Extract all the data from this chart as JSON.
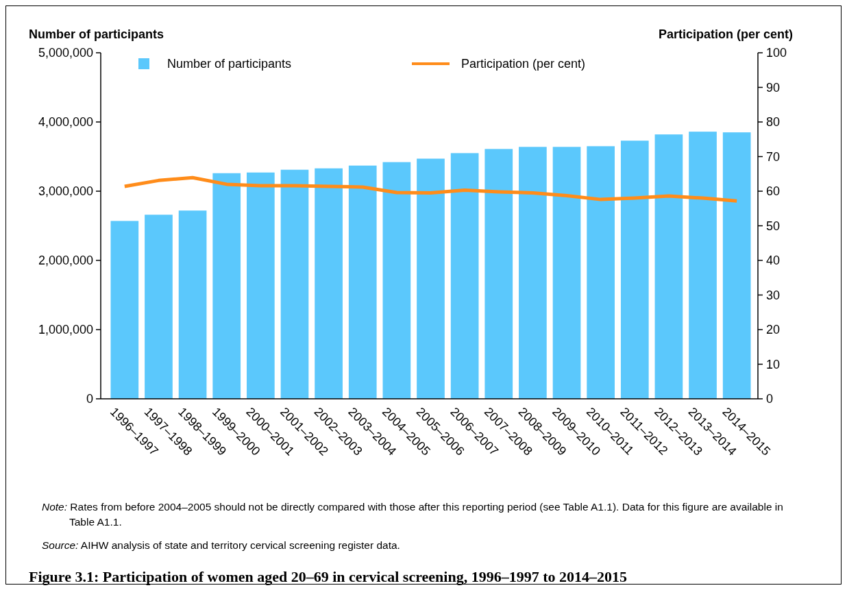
{
  "chart_data": {
    "type": "bar",
    "title": "Figure 3.1: Participation of women aged 20–69 in cervical screening, 1996–1997 to 2014–2015",
    "ylabel": "Number of participants",
    "y2label": "Participation (per cent)",
    "categories": [
      "1996–1997",
      "1997–1998",
      "1998–1999",
      "1999–2000",
      "2000–2001",
      "2001–2002",
      "2002–2003",
      "2003–2004",
      "2004–2005",
      "2005–2006",
      "2006–2007",
      "2007–2008",
      "2008–2009",
      "2009–2010",
      "2010–2011",
      "2011–2012",
      "2012–2013",
      "2013–2014",
      "2014–2015"
    ],
    "series": [
      {
        "name": "Number of participants",
        "color": "#5bc8fc",
        "values": [
          2570000,
          2660000,
          2720000,
          3260000,
          3270000,
          3310000,
          3330000,
          3370000,
          3420000,
          3470000,
          3550000,
          3610000,
          3640000,
          3640000,
          3650000,
          3730000,
          3820000,
          3860000,
          3850000
        ]
      },
      {
        "name": "Participation (per cent)",
        "type": "line",
        "axis": "y2",
        "color": "#ff8c1a",
        "values": [
          61.4,
          63.1,
          63.9,
          62.0,
          61.6,
          61.6,
          61.4,
          61.2,
          59.6,
          59.5,
          60.3,
          59.8,
          59.5,
          58.7,
          57.6,
          58.0,
          58.6,
          58.0,
          57.2
        ]
      }
    ],
    "ylim": [
      0,
      5000000
    ],
    "yticks": [
      0,
      {
        "value": 1000000,
        "label": "1,000,000"
      },
      {
        "value": 2000000,
        "label": "2,000,000"
      },
      {
        "value": 3000000,
        "label": "3,000,000"
      },
      {
        "value": 4000000,
        "label": "4,000,000"
      },
      {
        "value": 5000000,
        "label": "5,000,000"
      }
    ],
    "y2lim": [
      0,
      100
    ],
    "y2ticks": [
      0,
      10,
      20,
      30,
      40,
      50,
      60,
      70,
      80,
      90,
      100
    ],
    "legend": "top",
    "grid": false,
    "annotations": [
      "Note: Rates from before 2004–2005 should not be directly compared with those after this reporting period (see Table A1.1). Data for this figure are available in Table A1.1.",
      "Source: AIHW analysis of state and territory cervical screening register data."
    ]
  }
}
